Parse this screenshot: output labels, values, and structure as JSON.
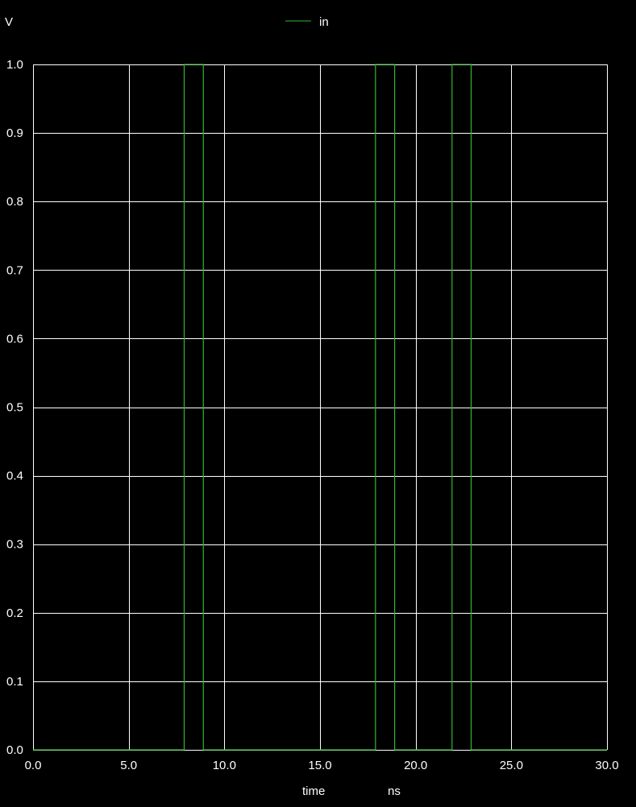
{
  "chart_data": {
    "type": "line",
    "ylabel": "V",
    "xlabel": "time",
    "xunit": "ns",
    "xlim": [
      0,
      30
    ],
    "ylim": [
      0,
      1
    ],
    "x_ticks": [
      "0.0",
      "5.0",
      "10.0",
      "15.0",
      "20.0",
      "25.0",
      "30.0"
    ],
    "x_tick_values": [
      0,
      5,
      10,
      15,
      20,
      25,
      30
    ],
    "y_ticks": [
      "0.0",
      "0.1",
      "0.2",
      "0.3",
      "0.4",
      "0.5",
      "0.6",
      "0.7",
      "0.8",
      "0.9",
      "1.0"
    ],
    "y_tick_values": [
      0,
      0.1,
      0.2,
      0.3,
      0.4,
      0.5,
      0.6,
      0.7,
      0.8,
      0.9,
      1.0
    ],
    "grid": true,
    "legend_position": "top-center",
    "series": [
      {
        "name": "in",
        "color": "#34b534",
        "x": [
          0,
          7.9,
          7.9,
          8.9,
          8.9,
          17.9,
          17.9,
          18.9,
          18.9,
          21.9,
          21.9,
          22.9,
          22.9,
          30
        ],
        "y": [
          0,
          0,
          1,
          1,
          0,
          0,
          1,
          1,
          0,
          0,
          1,
          1,
          0,
          0
        ]
      }
    ]
  }
}
